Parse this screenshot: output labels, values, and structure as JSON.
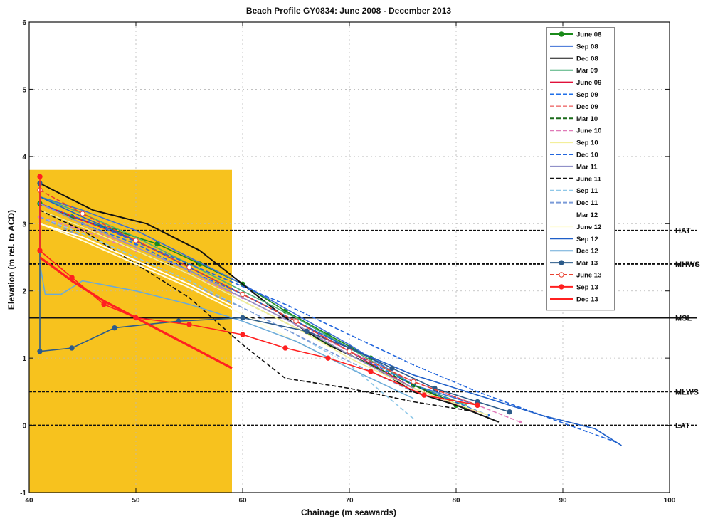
{
  "chart_data": {
    "type": "line",
    "title": "Beach Profile GY0834: June 2008 - December 2013",
    "xlabel": "Chainage (m seawards)",
    "ylabel": "Elevation (m rel. to ACD)",
    "xlim": [
      40,
      100
    ],
    "ylim": [
      -1,
      6
    ],
    "x_ticks": [
      "40",
      "50",
      "60",
      "70",
      "80",
      "90",
      "100"
    ],
    "y_ticks": [
      "-1",
      "0",
      "1",
      "2",
      "3",
      "4",
      "5",
      "6"
    ],
    "grid": true,
    "legend_position": "top-right",
    "shaded_area": {
      "color": "#F7C21E",
      "x_range": [
        40,
        59
      ],
      "y_top": 3.8
    },
    "reference_lines": [
      {
        "label": "HAT",
        "y": 2.9,
        "style": "dashed"
      },
      {
        "label": "MHWS",
        "y": 2.4,
        "style": "dashed"
      },
      {
        "label": "MSL",
        "y": 1.6,
        "style": "solid"
      },
      {
        "label": "MLWS",
        "y": 0.5,
        "style": "dashed"
      },
      {
        "label": "LAT",
        "y": 0.0,
        "style": "dashed"
      }
    ],
    "series": [
      {
        "name": "June 08",
        "color": "#1a8a1a",
        "dash": "solid",
        "marker": "circle",
        "x": [
          41,
          44,
          48,
          52,
          56,
          60,
          64,
          68,
          72,
          76,
          80
        ],
        "y": [
          3.3,
          3.1,
          2.9,
          2.7,
          2.4,
          2.1,
          1.7,
          1.35,
          1.0,
          0.6,
          0.3
        ]
      },
      {
        "name": "Sep 08",
        "color": "#3b6fd6",
        "dash": "solid",
        "marker": "none",
        "x": [
          41,
          45,
          50,
          55,
          60,
          65,
          70,
          76,
          82
        ],
        "y": [
          3.4,
          3.2,
          2.9,
          2.5,
          2.1,
          1.65,
          1.2,
          0.6,
          0.3
        ]
      },
      {
        "name": "Dec 08",
        "color": "#111111",
        "dash": "solid",
        "marker": "none",
        "x": [
          41,
          46,
          51,
          56,
          60,
          64,
          68,
          72,
          76,
          80,
          84
        ],
        "y": [
          3.6,
          3.2,
          3.0,
          2.6,
          2.1,
          1.6,
          1.2,
          0.9,
          0.5,
          0.3,
          0.05
        ]
      },
      {
        "name": "Mar 09",
        "color": "#4caf7a",
        "dash": "solid",
        "marker": "none",
        "x": [
          41,
          45,
          50,
          55,
          60,
          65,
          70,
          76,
          81
        ],
        "y": [
          3.4,
          3.15,
          2.8,
          2.4,
          2.0,
          1.6,
          1.15,
          0.6,
          0.3
        ]
      },
      {
        "name": "June 09",
        "color": "#e0103a",
        "dash": "solid",
        "marker": "none",
        "x": [
          41,
          45,
          50,
          55,
          60,
          65,
          70,
          76,
          82
        ],
        "y": [
          3.3,
          3.05,
          2.75,
          2.35,
          1.95,
          1.55,
          1.1,
          0.55,
          0.2
        ]
      },
      {
        "name": "Sep 09",
        "color": "#1f6fe8",
        "dash": "dash",
        "marker": "dot",
        "x": [
          41,
          45,
          50,
          55,
          60,
          65,
          70,
          76,
          83
        ],
        "y": [
          3.3,
          3.0,
          2.7,
          2.3,
          1.95,
          1.55,
          1.1,
          0.6,
          0.15
        ]
      },
      {
        "name": "Dec 09",
        "color": "#f08080",
        "dash": "dash",
        "marker": "none",
        "x": [
          41,
          45,
          50,
          55,
          60,
          65,
          70,
          76,
          82
        ],
        "y": [
          3.2,
          2.95,
          2.65,
          2.3,
          1.9,
          1.5,
          1.05,
          0.55,
          0.2
        ]
      },
      {
        "name": "Mar 10",
        "color": "#1a6a1a",
        "dash": "dash",
        "marker": "none",
        "x": [
          41,
          45,
          50,
          55,
          60,
          65,
          70,
          76,
          81
        ],
        "y": [
          3.2,
          2.95,
          2.6,
          2.25,
          1.85,
          1.45,
          1.05,
          0.6,
          0.25
        ]
      },
      {
        "name": "June 10",
        "color": "#e07ab8",
        "dash": "dash",
        "marker": "dot",
        "x": [
          41,
          45,
          50,
          55,
          60,
          65,
          70,
          76,
          82,
          86
        ],
        "y": [
          3.1,
          2.9,
          2.6,
          2.25,
          1.9,
          1.5,
          1.1,
          0.65,
          0.3,
          0.05
        ]
      },
      {
        "name": "Sep 10",
        "color": "#f3ef9a",
        "dash": "solid",
        "marker": "none",
        "x": [
          41,
          45,
          50,
          55,
          60,
          65,
          70,
          76,
          83
        ],
        "y": [
          3.2,
          2.95,
          2.6,
          2.25,
          1.85,
          1.45,
          1.0,
          0.55,
          0.15
        ]
      },
      {
        "name": "Dec 10",
        "color": "#2266dd",
        "dash": "dash",
        "marker": "none",
        "x": [
          41,
          46,
          52,
          58,
          64,
          70,
          76,
          82,
          88,
          95
        ],
        "y": [
          3.3,
          3.0,
          2.6,
          2.2,
          1.8,
          1.35,
          0.9,
          0.5,
          0.15,
          -0.25
        ]
      },
      {
        "name": "Mar 11",
        "color": "#9090c8",
        "dash": "solid",
        "marker": "none",
        "x": [
          41,
          45,
          50,
          55,
          60,
          65,
          70,
          76
        ],
        "y": [
          3.3,
          3.0,
          2.65,
          2.3,
          1.9,
          1.5,
          1.05,
          0.55
        ]
      },
      {
        "name": "June 11",
        "color": "#111111",
        "dash": "dash",
        "marker": "none",
        "x": [
          41,
          45,
          50,
          55,
          60,
          64,
          70,
          76,
          82
        ],
        "y": [
          3.2,
          2.9,
          2.4,
          1.9,
          1.2,
          0.7,
          0.55,
          0.35,
          0.2
        ]
      },
      {
        "name": "Sep 11",
        "color": "#8fc8e8",
        "dash": "dash",
        "marker": "none",
        "x": [
          41,
          45,
          50,
          55,
          60,
          65,
          70,
          76
        ],
        "y": [
          3.1,
          2.85,
          2.5,
          2.15,
          1.75,
          1.35,
          0.9,
          0.1
        ]
      },
      {
        "name": "Dec 11",
        "color": "#7a9ad8",
        "dash": "dash",
        "marker": "none",
        "x": [
          41,
          45,
          50,
          55,
          60,
          65,
          70,
          76
        ],
        "y": [
          3.1,
          2.8,
          2.45,
          2.1,
          1.75,
          1.35,
          0.95,
          0.5
        ]
      },
      {
        "name": "Mar 12",
        "color": "#ffffff",
        "dash": "solid",
        "marker": "none",
        "x": [
          41,
          45,
          50,
          55,
          60,
          65,
          70
        ],
        "y": [
          3.0,
          2.8,
          2.45,
          2.1,
          1.7,
          1.3,
          0.9
        ]
      },
      {
        "name": "June 12",
        "color": "#fffde0",
        "dash": "solid",
        "marker": "none",
        "x": [
          41,
          45,
          50,
          55,
          60,
          65,
          70
        ],
        "y": [
          3.0,
          2.75,
          2.4,
          2.05,
          1.65,
          1.25,
          0.85
        ]
      },
      {
        "name": "Sep 12",
        "color": "#1f5fc8",
        "dash": "solid",
        "marker": "none",
        "x": [
          41,
          45,
          50,
          55,
          60,
          65,
          70,
          76,
          82,
          88,
          93,
          95.5
        ],
        "y": [
          3.4,
          3.1,
          2.75,
          2.35,
          1.95,
          1.55,
          1.15,
          0.75,
          0.45,
          0.15,
          -0.05,
          -0.3
        ]
      },
      {
        "name": "Dec 12",
        "color": "#6aaad8",
        "dash": "solid",
        "marker": "none",
        "x": [
          41,
          41.5,
          43,
          45,
          50,
          55,
          60,
          65,
          70,
          76
        ],
        "y": [
          2.4,
          1.95,
          1.95,
          2.15,
          2.0,
          1.8,
          1.55,
          1.25,
          0.85,
          0.4
        ]
      },
      {
        "name": "Mar 13",
        "color": "#2c5b8a",
        "dash": "solid",
        "marker": "circle",
        "x": [
          41,
          41,
          44,
          48,
          54,
          60,
          66,
          70,
          74,
          78,
          82,
          85
        ],
        "y": [
          3.6,
          1.1,
          1.15,
          1.45,
          1.55,
          1.6,
          1.4,
          1.15,
          0.85,
          0.55,
          0.35,
          0.2
        ]
      },
      {
        "name": "June 13",
        "color": "#e84030",
        "dash": "dash",
        "marker": "open-circle",
        "x": [
          41,
          45,
          50,
          55,
          60,
          65,
          70,
          76,
          82
        ],
        "y": [
          3.5,
          3.15,
          2.75,
          2.35,
          1.95,
          1.55,
          1.1,
          0.65,
          0.3
        ]
      },
      {
        "name": "Sep 13",
        "color": "#ff2020",
        "dash": "solid",
        "marker": "circle",
        "x": [
          41,
          41,
          44,
          47,
          50,
          55,
          60,
          64,
          68,
          72,
          77,
          82
        ],
        "y": [
          3.7,
          2.6,
          2.2,
          1.8,
          1.6,
          1.5,
          1.35,
          1.15,
          1.0,
          0.8,
          0.45,
          0.3
        ]
      },
      {
        "name": "Dec 13",
        "color": "#ff2020",
        "dash": "solid",
        "marker": "none",
        "x": [
          41,
          44,
          47,
          50,
          53,
          56,
          59
        ],
        "y": [
          2.5,
          2.15,
          1.85,
          1.6,
          1.35,
          1.1,
          0.85
        ]
      }
    ]
  }
}
